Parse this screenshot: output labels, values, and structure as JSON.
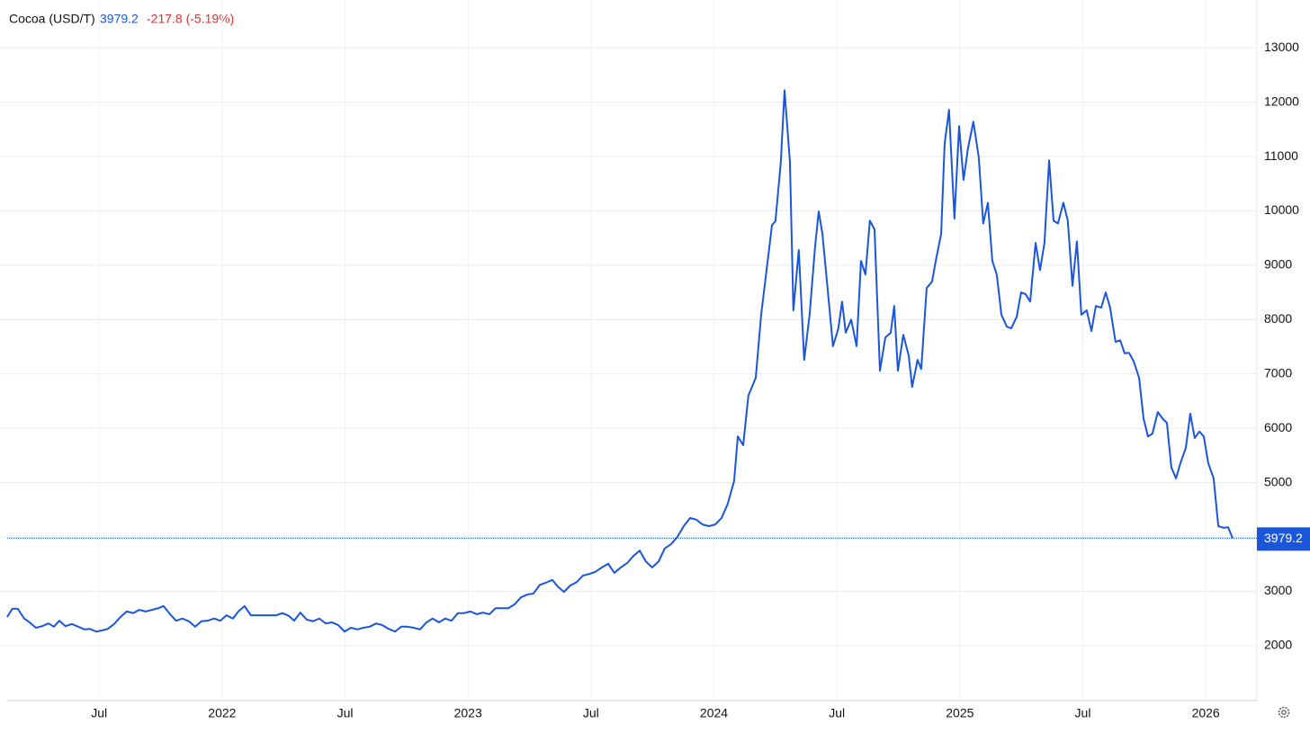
{
  "chart_data": {
    "type": "line",
    "title": "Cocoa (USD/T)",
    "change": "-217.8 (-5.19%)",
    "color": "#1a56db",
    "grid": true,
    "xlim": [
      2021.126,
      2026.208
    ],
    "ylim": [
      990,
      13880
    ],
    "xticks": [
      {
        "value": 2021.5,
        "label": "Jul"
      },
      2022,
      {
        "value": 2022.5,
        "label": "Jul"
      },
      2023,
      {
        "value": 2023.5,
        "label": "Jul"
      },
      2024,
      {
        "value": 2024.5,
        "label": "Jul"
      },
      2025,
      {
        "value": 2025.5,
        "label": "Jul"
      },
      2026
    ],
    "yticks": [
      2000,
      3000,
      4000,
      5000,
      6000,
      7000,
      8000,
      9000,
      10000,
      11000,
      12000,
      13000
    ],
    "x": [
      2021.126,
      2021.147,
      2021.169,
      2021.195,
      2021.217,
      2021.243,
      2021.268,
      2021.294,
      2021.316,
      2021.338,
      2021.363,
      2021.389,
      2021.415,
      2021.44,
      2021.462,
      2021.488,
      2021.51,
      2021.535,
      2021.561,
      2021.587,
      2021.612,
      2021.638,
      2021.663,
      2021.689,
      2021.715,
      2021.74,
      2021.762,
      2021.788,
      2021.813,
      2021.839,
      2021.865,
      2021.89,
      2021.916,
      2021.941,
      2021.967,
      2021.993,
      2022.018,
      2022.044,
      2022.066,
      2022.091,
      2022.117,
      2022.143,
      2022.168,
      2022.194,
      2022.22,
      2022.245,
      2022.271,
      2022.293,
      2022.318,
      2022.344,
      2022.37,
      2022.395,
      2022.421,
      2022.446,
      2022.472,
      2022.498,
      2022.523,
      2022.549,
      2022.574,
      2022.6,
      2022.626,
      2022.651,
      2022.677,
      2022.703,
      2022.728,
      2022.754,
      2022.779,
      2022.805,
      2022.831,
      2022.856,
      2022.882,
      2022.907,
      2022.933,
      2022.959,
      2022.984,
      2023.01,
      2023.035,
      2023.061,
      2023.087,
      2023.112,
      2023.138,
      2023.164,
      2023.189,
      2023.215,
      2023.24,
      2023.266,
      2023.292,
      2023.317,
      2023.343,
      2023.365,
      2023.39,
      2023.416,
      2023.442,
      2023.467,
      2023.493,
      2023.518,
      2023.544,
      2023.57,
      2023.595,
      2023.621,
      2023.647,
      2023.672,
      2023.698,
      2023.723,
      2023.749,
      2023.775,
      2023.8,
      2023.826,
      2023.851,
      2023.877,
      2023.903,
      2023.928,
      2023.954,
      2023.979,
      2024.005,
      2024.031,
      2024.056,
      2024.082,
      2024.097,
      2024.119,
      2024.14,
      2024.17,
      2024.192,
      2024.214,
      2024.236,
      2024.25,
      2024.272,
      2024.287,
      2024.309,
      2024.323,
      2024.345,
      2024.367,
      2024.389,
      2024.411,
      2024.426,
      2024.441,
      2024.462,
      2024.484,
      2024.506,
      2024.521,
      2024.536,
      2024.558,
      2024.58,
      2024.598,
      2024.616,
      2024.634,
      2024.653,
      2024.675,
      2024.697,
      2024.719,
      2024.733,
      2024.748,
      2024.77,
      2024.792,
      2024.806,
      2024.828,
      2024.843,
      2024.865,
      2024.887,
      2024.902,
      2024.924,
      2024.938,
      2024.956,
      2024.978,
      2024.997,
      2025.015,
      2025.033,
      2025.055,
      2025.077,
      2025.095,
      2025.114,
      2025.132,
      2025.15,
      2025.169,
      2025.191,
      2025.209,
      2025.231,
      2025.249,
      2025.267,
      2025.286,
      2025.308,
      2025.326,
      2025.344,
      2025.363,
      2025.381,
      2025.399,
      2025.421,
      2025.439,
      2025.458,
      2025.476,
      2025.494,
      2025.516,
      2025.535,
      2025.553,
      2025.575,
      2025.593,
      2025.611,
      2025.633,
      2025.652,
      2025.67,
      2025.688,
      2025.707,
      2025.729,
      2025.747,
      2025.765,
      2025.783,
      2025.805,
      2025.824,
      2025.842,
      2025.86,
      2025.879,
      2025.897,
      2025.919,
      2025.937,
      2025.955,
      2025.974,
      2025.992,
      2026.01,
      2026.032,
      2026.051,
      2026.072,
      2026.091,
      2026.109
    ],
    "values": [
      2530,
      2680,
      2680,
      2500,
      2430,
      2330,
      2360,
      2410,
      2350,
      2460,
      2360,
      2400,
      2350,
      2300,
      2310,
      2260,
      2280,
      2310,
      2400,
      2530,
      2630,
      2600,
      2660,
      2630,
      2660,
      2690,
      2730,
      2580,
      2460,
      2500,
      2450,
      2350,
      2450,
      2460,
      2500,
      2460,
      2560,
      2500,
      2630,
      2730,
      2560,
      2560,
      2560,
      2560,
      2560,
      2600,
      2550,
      2460,
      2610,
      2480,
      2450,
      2500,
      2410,
      2430,
      2380,
      2260,
      2330,
      2300,
      2330,
      2350,
      2410,
      2380,
      2310,
      2260,
      2350,
      2350,
      2330,
      2300,
      2430,
      2500,
      2430,
      2500,
      2460,
      2600,
      2600,
      2630,
      2580,
      2610,
      2580,
      2690,
      2690,
      2690,
      2760,
      2890,
      2940,
      2960,
      3120,
      3160,
      3210,
      3090,
      2990,
      3110,
      3170,
      3290,
      3320,
      3360,
      3440,
      3510,
      3340,
      3440,
      3520,
      3650,
      3750,
      3550,
      3440,
      3550,
      3790,
      3870,
      4000,
      4200,
      4350,
      4320,
      4230,
      4200,
      4230,
      4350,
      4610,
      5030,
      5850,
      5690,
      6600,
      6930,
      8090,
      8910,
      9740,
      9810,
      10900,
      12220,
      10900,
      8170,
      9280,
      7260,
      8090,
      9330,
      9990,
      9580,
      8580,
      7510,
      7840,
      8330,
      7760,
      8000,
      7510,
      9080,
      8830,
      9820,
      9660,
      7060,
      7670,
      7760,
      8250,
      7060,
      7720,
      7340,
      6760,
      7260,
      7090,
      8580,
      8700,
      9080,
      9580,
      11230,
      11860,
      9860,
      11560,
      10570,
      11150,
      11640,
      10980,
      9770,
      10150,
      9080,
      8830,
      8090,
      7870,
      7840,
      8050,
      8500,
      8470,
      8330,
      9410,
      8910,
      9410,
      10930,
      9820,
      9770,
      10150,
      9820,
      8620,
      9440,
      8090,
      8170,
      7790,
      8250,
      8220,
      8500,
      8220,
      7590,
      7620,
      7380,
      7390,
      7230,
      6930,
      6180,
      5850,
      5900,
      6300,
      6180,
      6100,
      5280,
      5080,
      5360,
      5640,
      6270,
      5820,
      5940,
      5850,
      5360,
      5080,
      4200,
      4170,
      4180,
      3979.2
    ]
  }
}
